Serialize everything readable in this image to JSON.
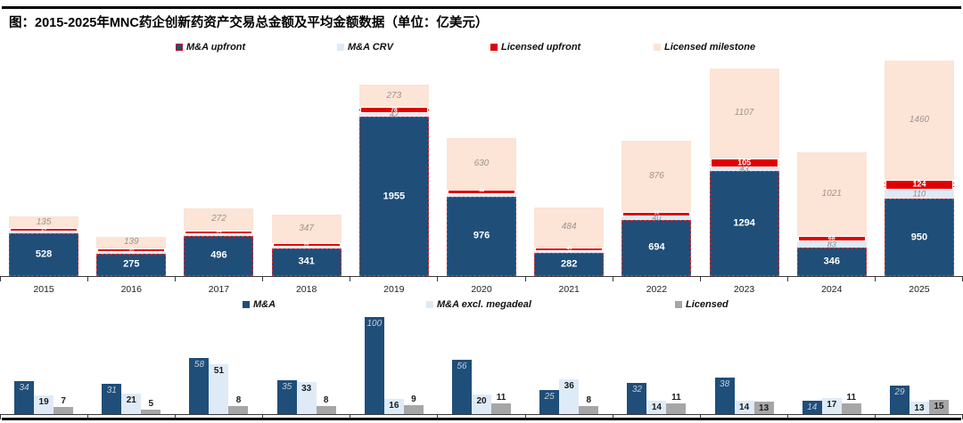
{
  "header": {
    "title": "图：2015-2025年MNC药企创新药资产交易总金额及平均金额数据（单位：亿美元）"
  },
  "colors": {
    "navy": "#1F4E79",
    "light_blue": "#DEEBF7",
    "red": "#E00000",
    "peach": "#FCE4D6",
    "gray": "#A6A6A6"
  },
  "chart_data": [
    {
      "type": "bar",
      "variant": "stacked",
      "legend_position": "top",
      "categories": [
        "2015",
        "2016",
        "2017",
        "2018",
        "2019",
        "2020",
        "2021",
        "2022",
        "2023",
        "2024",
        "2025"
      ],
      "series": [
        {
          "name": "M&A upfront",
          "values": [
            528,
            275,
            496,
            341,
            1955,
            976,
            282,
            694,
            1294,
            346,
            950
          ]
        },
        {
          "name": "M&A CRV",
          "values": [
            15,
            10,
            20,
            12,
            42,
            25,
            27,
            40,
            43,
            83,
            110
          ]
        },
        {
          "name": "Licensed upfront",
          "values": [
            24,
            18,
            34,
            30,
            78,
            64,
            45,
            51,
            105,
            68,
            124
          ]
        },
        {
          "name": "Licensed milestone",
          "values": [
            135,
            139,
            272,
            347,
            273,
            630,
            484,
            876,
            1107,
            1021,
            1460
          ]
        }
      ]
    },
    {
      "type": "bar",
      "variant": "grouped",
      "legend_position": "top",
      "categories": [
        "2015",
        "2016",
        "2017",
        "2018",
        "2019",
        "2020",
        "2021",
        "2022",
        "2023",
        "2024",
        "2025"
      ],
      "series": [
        {
          "name": "M&A",
          "values": [
            34,
            31,
            58,
            35,
            100,
            56,
            25,
            32,
            38,
            14,
            29
          ]
        },
        {
          "name": "M&A excl. megadeal",
          "values": [
            19,
            21,
            51,
            33,
            16,
            20,
            36,
            14,
            14,
            17,
            13
          ]
        },
        {
          "name": "Licensed",
          "values": [
            7,
            5,
            8,
            8,
            9,
            11,
            8,
            11,
            13,
            11,
            15
          ]
        }
      ]
    }
  ]
}
